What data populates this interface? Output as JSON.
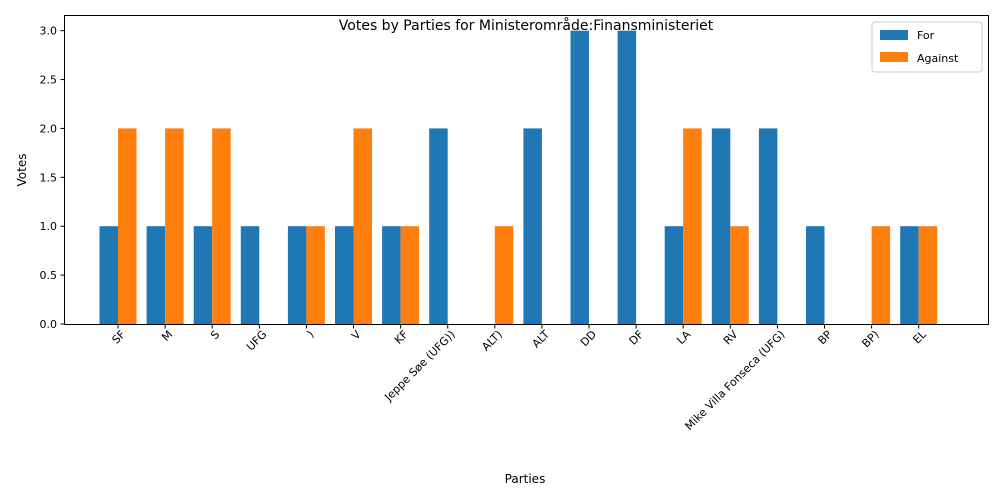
{
  "chart_data": {
    "type": "bar",
    "title": "Votes by Parties for Ministerområde:Finansministeriet",
    "xlabel": "Parties",
    "ylabel": "Votes",
    "ylim": [
      0,
      3.15
    ],
    "yticks": [
      "0.0",
      "0.5",
      "1.0",
      "1.5",
      "2.0",
      "2.5",
      "3.0"
    ],
    "grid": false,
    "legend_position": "top-right",
    "categories": [
      "SF",
      "M",
      "S",
      "UFG",
      ")",
      "V",
      "KF",
      "Jeppe Søe (UFG))",
      "ALT)",
      "ALT",
      "DD",
      "DF",
      "LA",
      "RV",
      "Mike Villa Fonseca (UFG)",
      "BP",
      "BP)",
      "EL"
    ],
    "series": [
      {
        "name": "For",
        "color": "#1f77b4",
        "values": [
          1,
          1,
          1,
          1,
          1,
          1,
          1,
          2,
          0,
          2,
          3,
          3,
          1,
          2,
          2,
          1,
          0,
          1
        ]
      },
      {
        "name": "Against",
        "color": "#ff7f0e",
        "values": [
          2,
          2,
          2,
          0,
          1,
          2,
          1,
          0,
          1,
          0,
          0,
          0,
          2,
          1,
          0,
          0,
          1,
          1
        ]
      }
    ]
  }
}
